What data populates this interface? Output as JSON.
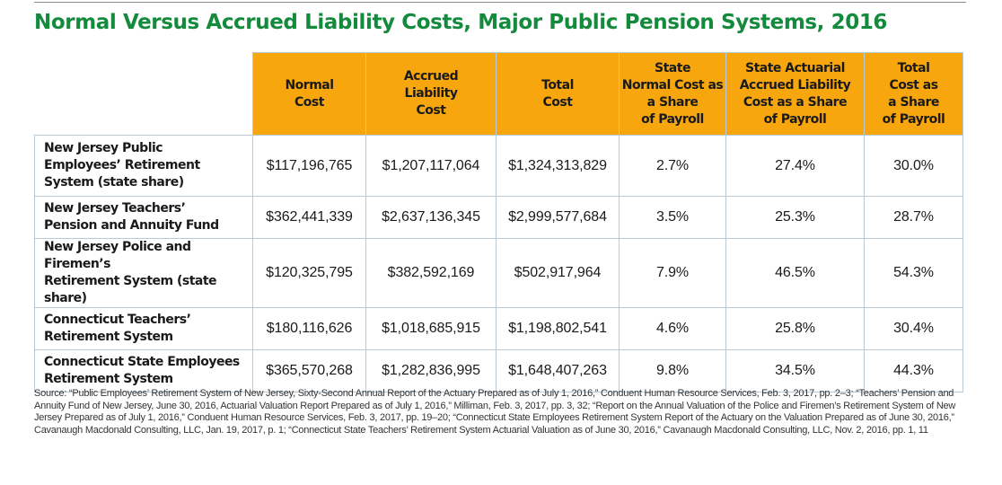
{
  "title": "Normal Versus Accrued Liability Costs, Major Public Pension Systems, 2016",
  "headers": [
    "Normal\nCost",
    "Accrued\nLiability\nCost",
    "Total\nCost",
    "State\nNormal Cost as\na Share\nof Payroll",
    "State Actuarial\nAccrued Liability\nCost as a Share\nof Payroll",
    "Total\nCost as\na Share\nof Payroll"
  ],
  "rows": [
    {
      "label": "New Jersey Public\nEmployees’ Retirement\nSystem (state share)",
      "cells": [
        "$117,196,765",
        "$1,207,117,064",
        "$1,324,313,829",
        "2.7%",
        "27.4%",
        "30.0%"
      ]
    },
    {
      "label": "New Jersey Teachers’\nPension and Annuity Fund",
      "cells": [
        "$362,441,339",
        "$2,637,136,345",
        "$2,999,577,684",
        "3.5%",
        "25.3%",
        "28.7%"
      ]
    },
    {
      "label": "New Jersey Police and Firemen’s\nRetirement System (state share)",
      "cells": [
        "$120,325,795",
        "$382,592,169",
        "$502,917,964",
        "7.9%",
        "46.5%",
        "54.3%"
      ]
    },
    {
      "label": "Connecticut Teachers’\nRetirement System",
      "cells": [
        "$180,116,626",
        "$1,018,685,915",
        "$1,198,802,541",
        "4.6%",
        "25.8%",
        "30.4%"
      ]
    },
    {
      "label": "Connecticut State Employees\nRetirement System",
      "cells": [
        "$365,570,268",
        "$1,282,836,995",
        "$1,648,407,263",
        "9.8%",
        "34.5%",
        "44.3%"
      ]
    }
  ],
  "source": "Source: “Public Employees’ Retirement System of New Jersey, Sixty-Second Annual Report of the Actuary Prepared as of July 1, 2016,” Conduent Human Resource Services, Feb. 3, 2017, pp. 2–3; “Teachers’ Pension and Annuity Fund of New Jersey, June 30, 2016, Actuarial Valuation Report Prepared as of July 1, 2016,” Milliman, Feb. 3, 2017, pp. 3, 32; “Report on the Annual Valuation of the Police and Firemen’s Retirement System of New Jersey Prepared as of July 1, 2016,” Conduent Human Resource Services, Feb. 3, 2017, pp. 19–20; “Connecticut State Employees Retirement System Report of the Actuary on the Valuation Prepared as of June 30, 2016,” Cavanaugh Macdonald Consulting, LLC, Jan. 19, 2017, p. 1; “Connecticut State Teachers’ Retirement System Actuarial Valuation as of June 30, 2016,” Cavanaugh Macdonald Consulting, LLC, Nov. 2, 2016, pp. 1, 11",
  "colors": {
    "title_green": "#138a3c",
    "header_orange": "#f7a70d",
    "grid_line": "#b9cad6"
  }
}
